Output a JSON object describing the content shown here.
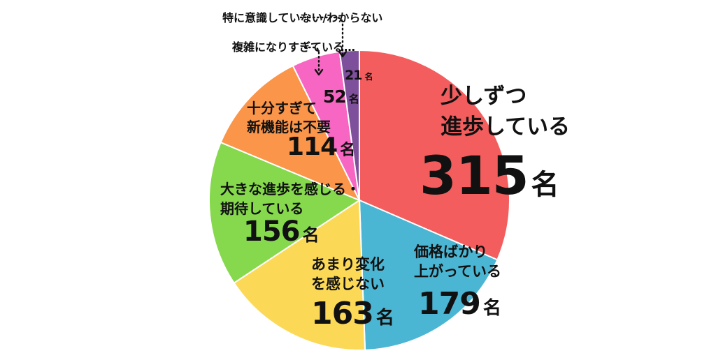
{
  "chart_data": {
    "type": "pie",
    "title": "",
    "unit": "名",
    "slices": [
      {
        "label": "少しずつ進歩している",
        "label_lines": [
          "少しずつ",
          "進歩している"
        ],
        "value": 315,
        "color": "#f45d5d"
      },
      {
        "label": "価格ばかり上がっている",
        "label_lines": [
          "価格ばかり",
          "上がっている"
        ],
        "value": 179,
        "color": "#4bb6d3"
      },
      {
        "label": "あまり変化を感じない",
        "label_lines": [
          "あまり変化",
          "を感じない"
        ],
        "value": 163,
        "color": "#fbd957"
      },
      {
        "label": "大きな進歩を感じる・期待している",
        "label_lines": [
          "大きな進歩を感じる・",
          "期待している"
        ],
        "value": 156,
        "color": "#86d84d"
      },
      {
        "label": "十分すぎて新機能は不要",
        "label_lines": [
          "十分すぎて",
          "新機能は不要"
        ],
        "value": 114,
        "color": "#fb9549"
      },
      {
        "label": "複雑になりすぎている",
        "label_lines": [
          "複雑になりすぎている…"
        ],
        "value": 52,
        "color": "#f766c3"
      },
      {
        "label": "特に意識していない/わからない",
        "label_lines": [
          "特に意識していない/わからない"
        ],
        "value": 21,
        "color": "#7e4f9a"
      }
    ]
  }
}
